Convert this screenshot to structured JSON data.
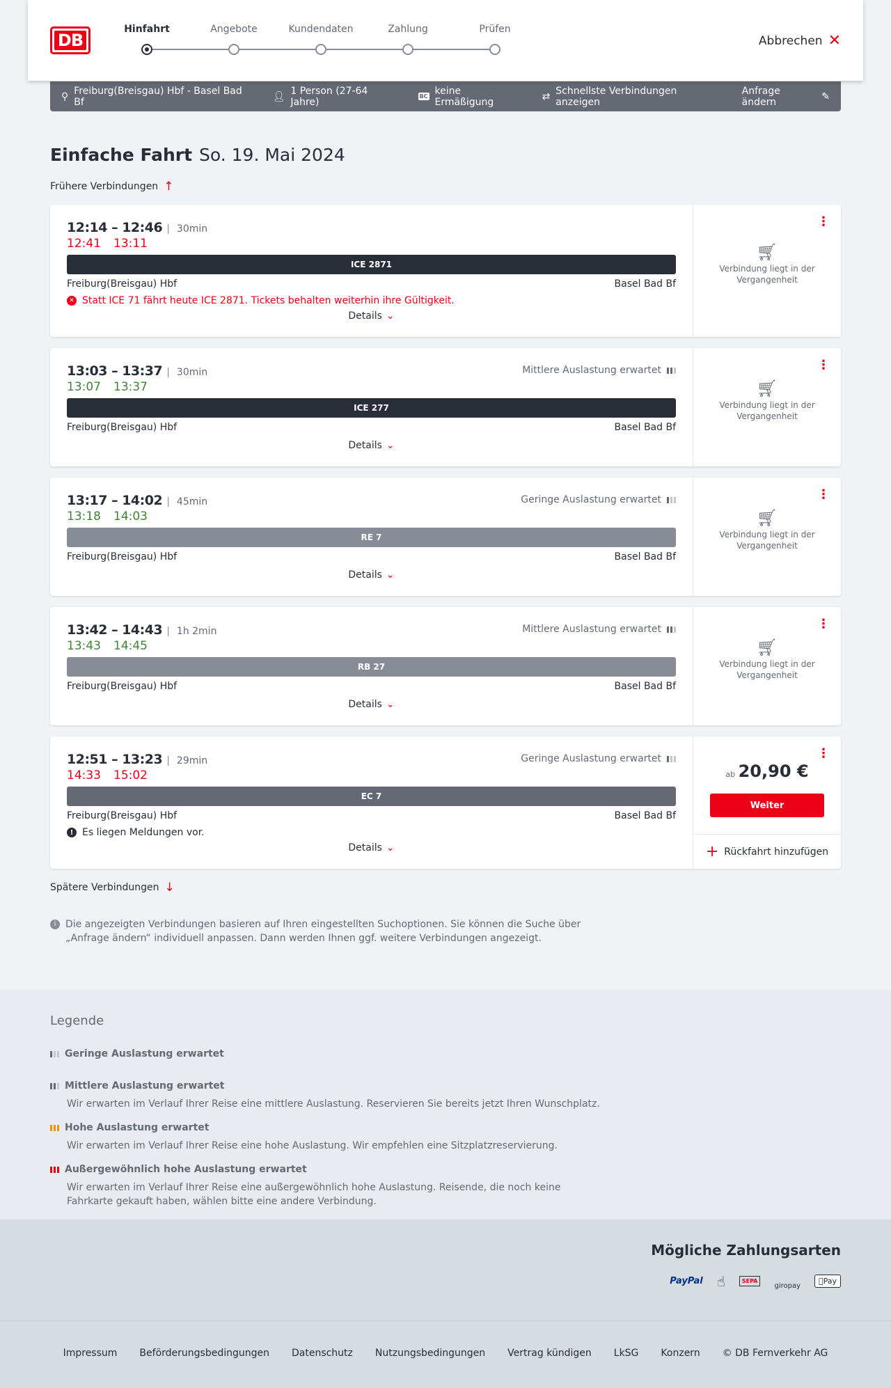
{
  "header": {
    "logo": "DB",
    "steps": [
      "Hinfahrt",
      "Angebote",
      "Kundendaten",
      "Zahlung",
      "Prüfen"
    ],
    "active_step": 0,
    "cancel": "Abbrechen"
  },
  "search_bar": {
    "route": "Freiburg(Breisgau) Hbf - Basel Bad Bf",
    "passengers": "1 Person (27-64 Jahre)",
    "discount_icon": "BC",
    "discount": "keine Ermäßigung",
    "option": "Schnellste Verbindungen anzeigen",
    "edit": "Anfrage ändern"
  },
  "title": {
    "main": "Einfache Fahrt",
    "date": "So. 19. Mai 2024"
  },
  "earlier": "Frühere Verbindungen",
  "later": "Spätere Verbindungen",
  "details_label": "Details",
  "past_label": "Verbindung liegt in der Vergangenheit",
  "connections": [
    {
      "times": "12:14 – 12:46",
      "duration": "30min",
      "rt_dep": "12:41",
      "rt_arr": "13:11",
      "rt_status": "delayed",
      "train": "ICE 2871",
      "train_color": "#282d37",
      "from": "Freiburg(Breisgau) Hbf",
      "to": "Basel Bad Bf",
      "load": "",
      "message": "Statt ICE 71 fährt heute ICE 2871. Tickets behalten weiterhin ihre Gültigkeit.",
      "message_type": "error"
    },
    {
      "times": "13:03 – 13:37",
      "duration": "30min",
      "rt_dep": "13:07",
      "rt_arr": "13:37",
      "rt_status": "ontime",
      "train": "ICE 277",
      "train_color": "#282d37",
      "from": "Freiburg(Breisgau) Hbf",
      "to": "Basel Bad Bf",
      "load": "Mittlere Auslastung erwartet",
      "load_level": 2
    },
    {
      "times": "13:17 – 14:02",
      "duration": "45min",
      "rt_dep": "13:18",
      "rt_arr": "14:03",
      "rt_status": "ontime",
      "train": "RE 7",
      "train_color": "#878c96",
      "from": "Freiburg(Breisgau) Hbf",
      "to": "Basel Bad Bf",
      "load": "Geringe Auslastung erwartet",
      "load_level": 1
    },
    {
      "times": "13:42 – 14:43",
      "duration": "1h 2min",
      "rt_dep": "13:43",
      "rt_arr": "14:45",
      "rt_status": "ontime",
      "train": "RB 27",
      "train_color": "#878c96",
      "from": "Freiburg(Breisgau) Hbf",
      "to": "Basel Bad Bf",
      "load": "Mittlere Auslastung erwartet",
      "load_level": 2
    },
    {
      "times": "12:51 – 13:23",
      "duration": "29min",
      "rt_dep": "14:33",
      "rt_arr": "15:02",
      "rt_status": "delayed",
      "train": "EC 7",
      "train_color": "#646973",
      "from": "Freiburg(Breisgau) Hbf",
      "to": "Basel Bad Bf",
      "load": "Geringe Auslastung erwartet",
      "load_level": 1,
      "message": "Es liegen Meldungen vor.",
      "message_type": "info",
      "price_prefix": "ab",
      "price": "20,90 €",
      "cta": "Weiter",
      "return": "Rückfahrt hinzufügen"
    }
  ],
  "info": "Die angezeigten Verbindungen basieren auf Ihren eingestellten Suchoptionen. Sie können die Suche über „Anfrage ändern“ individuell anpassen. Dann werden Ihnen ggf. weitere Verbindungen angezeigt.",
  "legend": {
    "title": "Legende",
    "items": [
      {
        "title": "Geringe Auslastung erwartet",
        "text": "",
        "color": "#646973"
      },
      {
        "title": "Mittlere Auslastung erwartet",
        "text": "Wir erwarten im Verlauf Ihrer Reise eine mittlere Auslastung. Reservieren Sie bereits jetzt Ihren Wunschplatz.",
        "color": "#646973"
      },
      {
        "title": "Hohe Auslastung erwartet",
        "text": "Wir erwarten im Verlauf Ihrer Reise eine hohe Auslastung. Wir empfehlen eine Sitzplatzreservierung.",
        "color": "#f39200"
      },
      {
        "title": "Außergewöhnlich hohe Auslastung erwartet",
        "text": "Wir erwarten im Verlauf Ihrer Reise eine außergewöhnlich hohe Auslastung. Reisende, die noch keine Fahrkarte gekauft haben, wählen bitte eine andere Verbindung.",
        "color": "#ec0016"
      }
    ]
  },
  "payment": {
    "title": "Mögliche Zahlungsarten",
    "methods": [
      "PayPal",
      "Kreditkarte",
      "SEPA",
      "giropay",
      "Pay"
    ]
  },
  "footer": [
    "Impressum",
    "Beförderungsbedingungen",
    "Datenschutz",
    "Nutzungsbedingungen",
    "Vertrag kündigen",
    "LkSG",
    "Konzern",
    "© DB Fernverkehr AG"
  ]
}
